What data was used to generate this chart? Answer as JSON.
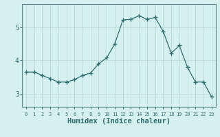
{
  "x": [
    0,
    1,
    2,
    3,
    4,
    5,
    6,
    7,
    8,
    9,
    10,
    11,
    12,
    13,
    14,
    15,
    16,
    17,
    18,
    19,
    20,
    21,
    22,
    23
  ],
  "y": [
    3.65,
    3.65,
    3.55,
    3.45,
    3.35,
    3.35,
    3.42,
    3.55,
    3.62,
    3.9,
    4.08,
    4.5,
    5.22,
    5.24,
    5.35,
    5.24,
    5.3,
    4.88,
    4.22,
    4.45,
    3.8,
    3.35,
    3.35,
    2.9
  ],
  "xlabel": "Humidex (Indice chaleur)",
  "yticks": [
    3,
    4,
    5
  ],
  "xlim": [
    -0.5,
    23.5
  ],
  "ylim": [
    2.6,
    5.7
  ],
  "line_color": "#2d6e6e",
  "marker": "+",
  "marker_size": 4,
  "bg_color": "#d6f0f0",
  "grid_color": "#b8dada",
  "axis_color": "#5a8a8a",
  "tick_color": "#2d6e6e",
  "label_color": "#2d6e6e",
  "xlabel_fontsize": 7.5,
  "ytick_fontsize": 7,
  "xtick_fontsize": 5
}
